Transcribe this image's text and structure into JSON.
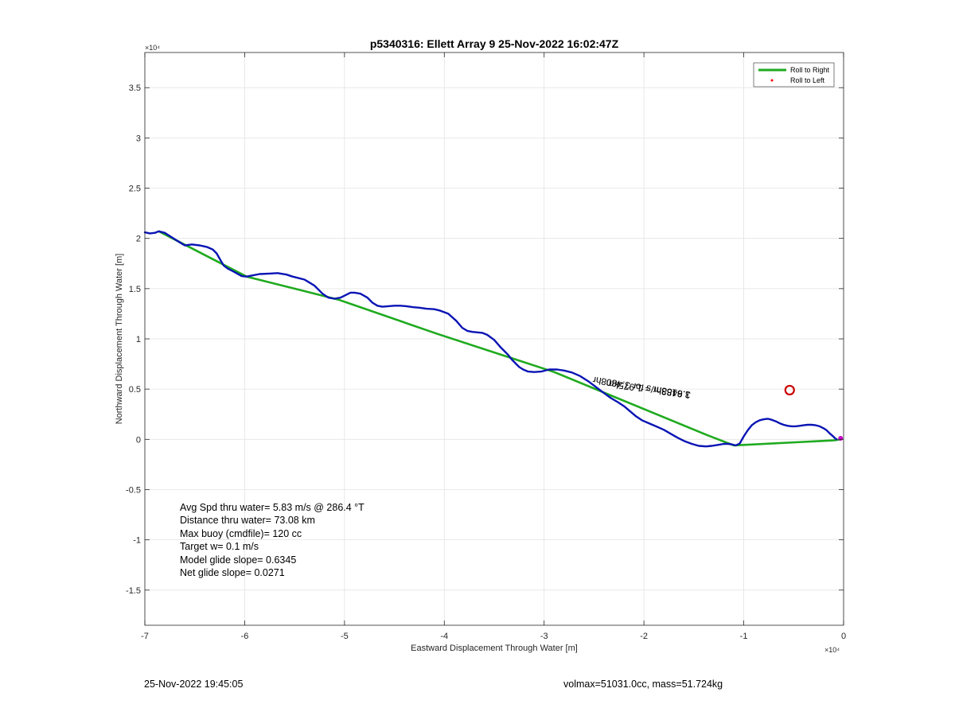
{
  "chart_data": {
    "type": "line",
    "title": "p5340316: Ellett Array 9 25-Nov-2022 16:02:47Z",
    "xlabel": "Eastward Displacement Through Water [m]",
    "ylabel": "Northward Displacement Through Water [m]",
    "x_exponent_label": "×10⁴",
    "y_exponent_label": "×10⁴",
    "xlim": [
      -70000,
      0
    ],
    "ylim": [
      -18500,
      38500
    ],
    "x_ticks": [
      -70000,
      -60000,
      -50000,
      -40000,
      -30000,
      -20000,
      -10000,
      0
    ],
    "x_tick_labels": [
      "-7",
      "-6",
      "-5",
      "-4",
      "-3",
      "-2",
      "-1",
      "0"
    ],
    "y_ticks": [
      -15000,
      -10000,
      -5000,
      0,
      5000,
      10000,
      15000,
      20000,
      25000,
      30000,
      35000
    ],
    "y_tick_labels": [
      "-1.5",
      "-1",
      "-0.5",
      "0",
      "0.5",
      "1",
      "1.5",
      "2",
      "2.5",
      "3",
      "3.5"
    ],
    "grid": true,
    "legend_position": "top-right",
    "legend": [
      {
        "label": "Roll to Right",
        "color": "#1faa1f",
        "style": "line"
      },
      {
        "label": "Roll to Left",
        "color": "#ff0000",
        "style": "dot"
      }
    ],
    "series": [
      {
        "name": "Roll to Right",
        "color": "#1faa1f",
        "x": [
          -68600,
          -59800,
          -50600,
          -40700,
          -29000,
          -13600,
          -11000,
          -1000,
          -300
        ],
        "y": [
          20700,
          16200,
          13900,
          10500,
          6700,
          400,
          -600,
          -100,
          0
        ]
      },
      {
        "name": "track",
        "color": "#0a14b4",
        "x": [
          -70000,
          -69500,
          -69000,
          -68600,
          -68000,
          -67300,
          -66500,
          -66000,
          -65300,
          -64500,
          -63800,
          -63200,
          -62800,
          -62400,
          -62100,
          -61700,
          -61100,
          -60300,
          -59800,
          -59300,
          -58500,
          -57500,
          -56700,
          -55800,
          -55200,
          -54600,
          -54000,
          -53500,
          -53000,
          -52200,
          -51600,
          -51000,
          -50400,
          -49800,
          -49400,
          -49000,
          -48400,
          -47700,
          -47200,
          -46700,
          -46200,
          -45600,
          -45000,
          -44400,
          -43800,
          -43100,
          -42500,
          -41800,
          -41000,
          -40400,
          -39600,
          -38800,
          -38200,
          -37700,
          -37200,
          -36700,
          -36200,
          -35700,
          -35000,
          -34300,
          -33600,
          -33200,
          -32800,
          -32500,
          -32100,
          -31600,
          -31000,
          -30300,
          -29500,
          -28700,
          -28000,
          -27200,
          -26400,
          -25600,
          -24800,
          -24000,
          -23300,
          -22600,
          -22000,
          -21400,
          -20800,
          -20200,
          -19500,
          -18800,
          -18000,
          -17300,
          -16600,
          -15900,
          -15200,
          -14500,
          -13800,
          -13200,
          -12600,
          -12000,
          -11600,
          -11200,
          -10800,
          -10400,
          -10000,
          -9600,
          -9200,
          -8800,
          -8400,
          -8000,
          -7600,
          -7200,
          -6800,
          -6400,
          -6000,
          -5600,
          -5200,
          -4800,
          -4400,
          -4000,
          -3600,
          -3200,
          -2800,
          -2400,
          -2000,
          -1700,
          -1400,
          -1100,
          -900,
          -700
        ],
        "y": [
          20600,
          20500,
          20550,
          20700,
          20550,
          20100,
          19600,
          19300,
          19400,
          19300,
          19150,
          18900,
          18500,
          17800,
          17300,
          17000,
          16700,
          16250,
          16200,
          16300,
          16450,
          16500,
          16550,
          16400,
          16200,
          16050,
          15900,
          15600,
          15300,
          14500,
          14100,
          14000,
          14100,
          14400,
          14600,
          14600,
          14500,
          14100,
          13600,
          13300,
          13200,
          13250,
          13300,
          13300,
          13250,
          13150,
          13100,
          13000,
          12950,
          12800,
          12500,
          11800,
          11100,
          10800,
          10700,
          10650,
          10600,
          10400,
          9900,
          9100,
          8400,
          7900,
          7500,
          7200,
          6950,
          6750,
          6700,
          6750,
          6950,
          6950,
          6850,
          6650,
          6300,
          5800,
          5200,
          4600,
          4100,
          3700,
          3300,
          2800,
          2300,
          1900,
          1600,
          1300,
          950,
          550,
          150,
          -200,
          -450,
          -650,
          -700,
          -650,
          -550,
          -450,
          -450,
          -500,
          -600,
          -400,
          300,
          900,
          1400,
          1700,
          1900,
          2000,
          2050,
          1950,
          1800,
          1600,
          1450,
          1350,
          1300,
          1300,
          1350,
          1400,
          1450,
          1450,
          1400,
          1300,
          1100,
          900,
          600,
          350,
          150,
          0
        ]
      }
    ],
    "annotations": [
      {
        "text": "1.9488hr = 1.975km",
        "x": -15300,
        "y": 4700,
        "rotate_deg": 188
      },
      {
        "text": "3.6153m/s for 3.4808hr",
        "x": -15300,
        "y": 4700,
        "rotate_deg": 189
      }
    ],
    "markers": [
      {
        "type": "circle",
        "x": -5400,
        "y": 4900,
        "color": "#cc0000"
      },
      {
        "type": "dot",
        "x": -300,
        "y": 100,
        "color": "#cc00cc"
      }
    ]
  },
  "stats": [
    "Avg Spd thru water=  5.83 m/s @ 286.4 °T",
    "Distance thru water= 73.08 km",
    "Max buoy (cmdfile)= 120 cc",
    "Target w= 0.1 m/s",
    "Model glide slope= 0.6345",
    "Net glide slope= 0.0271"
  ],
  "footer": {
    "left": "25-Nov-2022 19:45:05",
    "right": "volmax=51031.0cc, mass=51.724kg"
  }
}
